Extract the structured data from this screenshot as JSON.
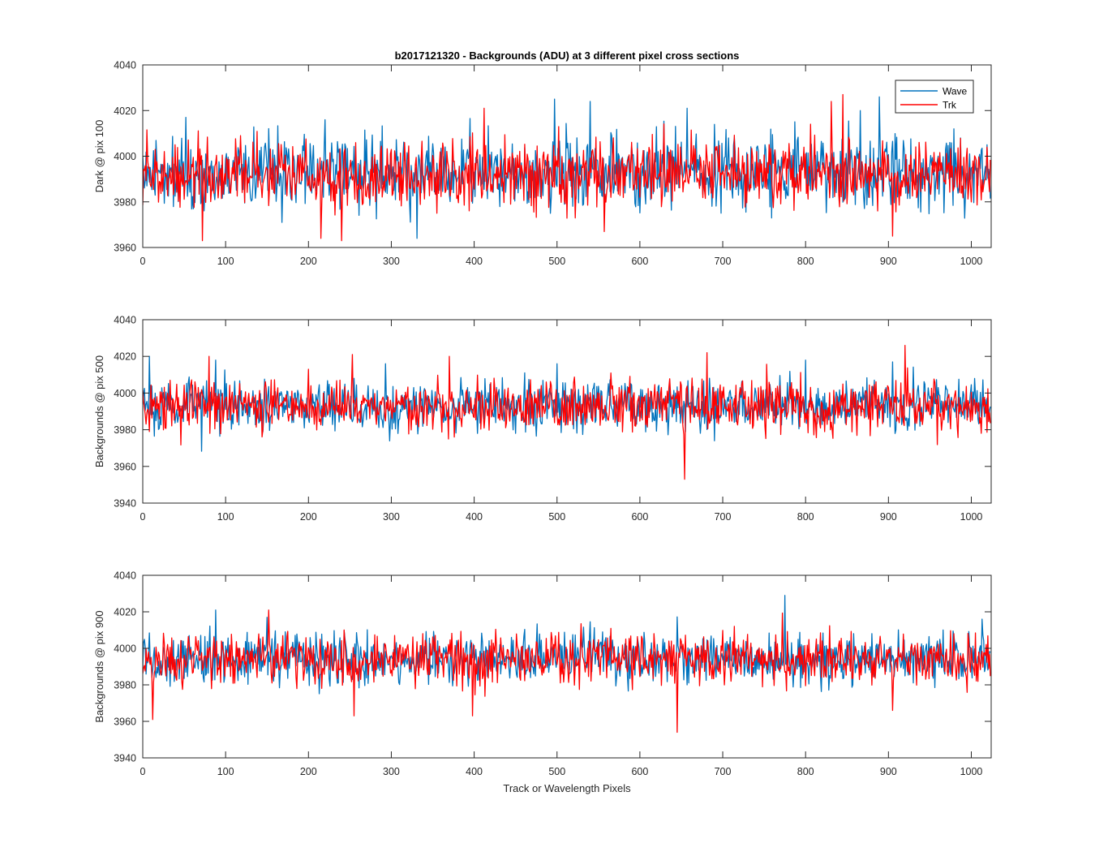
{
  "chart_data": [
    {
      "type": "line",
      "title": "b2017121320 - Backgrounds (ADU) at 3 different pixel cross sections",
      "xlabel": "",
      "ylabel": "Dark @ pix 100",
      "xlim": [
        0,
        1024
      ],
      "ylim": [
        3960,
        4040
      ],
      "xticks": [
        0,
        100,
        200,
        300,
        400,
        500,
        600,
        700,
        800,
        900,
        1000
      ],
      "yticks": [
        3960,
        3980,
        4000,
        4020,
        4040
      ],
      "grid": false,
      "legend": {
        "placement": "top-right",
        "entries": [
          "Wave",
          "Trk"
        ]
      },
      "series": [
        {
          "name": "Wave",
          "color": "#0072BD",
          "points": 1024,
          "mean": 3993,
          "std": 8,
          "seed": 11,
          "spikes": [
            [
              52,
              4017
            ],
            [
              220,
              4016
            ],
            [
              331,
              3964
            ],
            [
              497,
              4025
            ],
            [
              540,
              4024
            ],
            [
              657,
              4021
            ],
            [
              866,
              4020
            ],
            [
              889,
              4026
            ]
          ]
        },
        {
          "name": "Trk",
          "color": "#FF0000",
          "points": 1024,
          "mean": 3992,
          "std": 7,
          "seed": 23,
          "spikes": [
            [
              72,
              3963
            ],
            [
              215,
              3964
            ],
            [
              240,
              3963
            ],
            [
              412,
              4021
            ],
            [
              557,
              3967
            ],
            [
              831,
              4024
            ],
            [
              845,
              4027
            ],
            [
              905,
              3965
            ]
          ]
        }
      ]
    },
    {
      "type": "line",
      "title": "",
      "xlabel": "",
      "ylabel": "Backgrounds @ pix 500",
      "xlim": [
        0,
        1024
      ],
      "ylim": [
        3940,
        4040
      ],
      "xticks": [
        0,
        100,
        200,
        300,
        400,
        500,
        600,
        700,
        800,
        900,
        1000
      ],
      "yticks": [
        3940,
        3960,
        3980,
        4000,
        4020,
        4040
      ],
      "grid": false,
      "series": [
        {
          "name": "Wave",
          "color": "#0072BD",
          "points": 1024,
          "mean": 3993,
          "std": 7,
          "seed": 37,
          "spikes": [
            [
              8,
              4020
            ],
            [
              88,
              4018
            ],
            [
              293,
              4016
            ],
            [
              500,
              4016
            ],
            [
              800,
              4018
            ],
            [
              905,
              4017
            ]
          ]
        },
        {
          "name": "Trk",
          "color": "#FF0000",
          "points": 1024,
          "mean": 3993,
          "std": 7,
          "seed": 41,
          "spikes": [
            [
              80,
              4020
            ],
            [
              253,
              4021
            ],
            [
              370,
              4020
            ],
            [
              654,
              3953
            ],
            [
              681,
              4022
            ],
            [
              920,
              4026
            ]
          ]
        }
      ]
    },
    {
      "type": "line",
      "title": "",
      "xlabel": "Track or Wavelength Pixels",
      "ylabel": "Backgrounds @ pix 900",
      "xlim": [
        0,
        1024
      ],
      "ylim": [
        3940,
        4040
      ],
      "xticks": [
        0,
        100,
        200,
        300,
        400,
        500,
        600,
        700,
        800,
        900,
        1000
      ],
      "yticks": [
        3940,
        3960,
        3980,
        4000,
        4020,
        4040
      ],
      "grid": false,
      "series": [
        {
          "name": "Wave",
          "color": "#0072BD",
          "points": 1024,
          "mean": 3994,
          "std": 7,
          "seed": 53,
          "spikes": [
            [
              88,
              4021
            ],
            [
              150,
              4017
            ],
            [
              775,
              4029
            ],
            [
              1013,
              4016
            ]
          ]
        },
        {
          "name": "Trk",
          "color": "#FF0000",
          "points": 1024,
          "mean": 3994,
          "std": 7,
          "seed": 59,
          "spikes": [
            [
              12,
              3961
            ],
            [
              152,
              4021
            ],
            [
              255,
              3963
            ],
            [
              398,
              3963
            ],
            [
              645,
              3954
            ],
            [
              905,
              3966
            ]
          ]
        }
      ]
    }
  ]
}
